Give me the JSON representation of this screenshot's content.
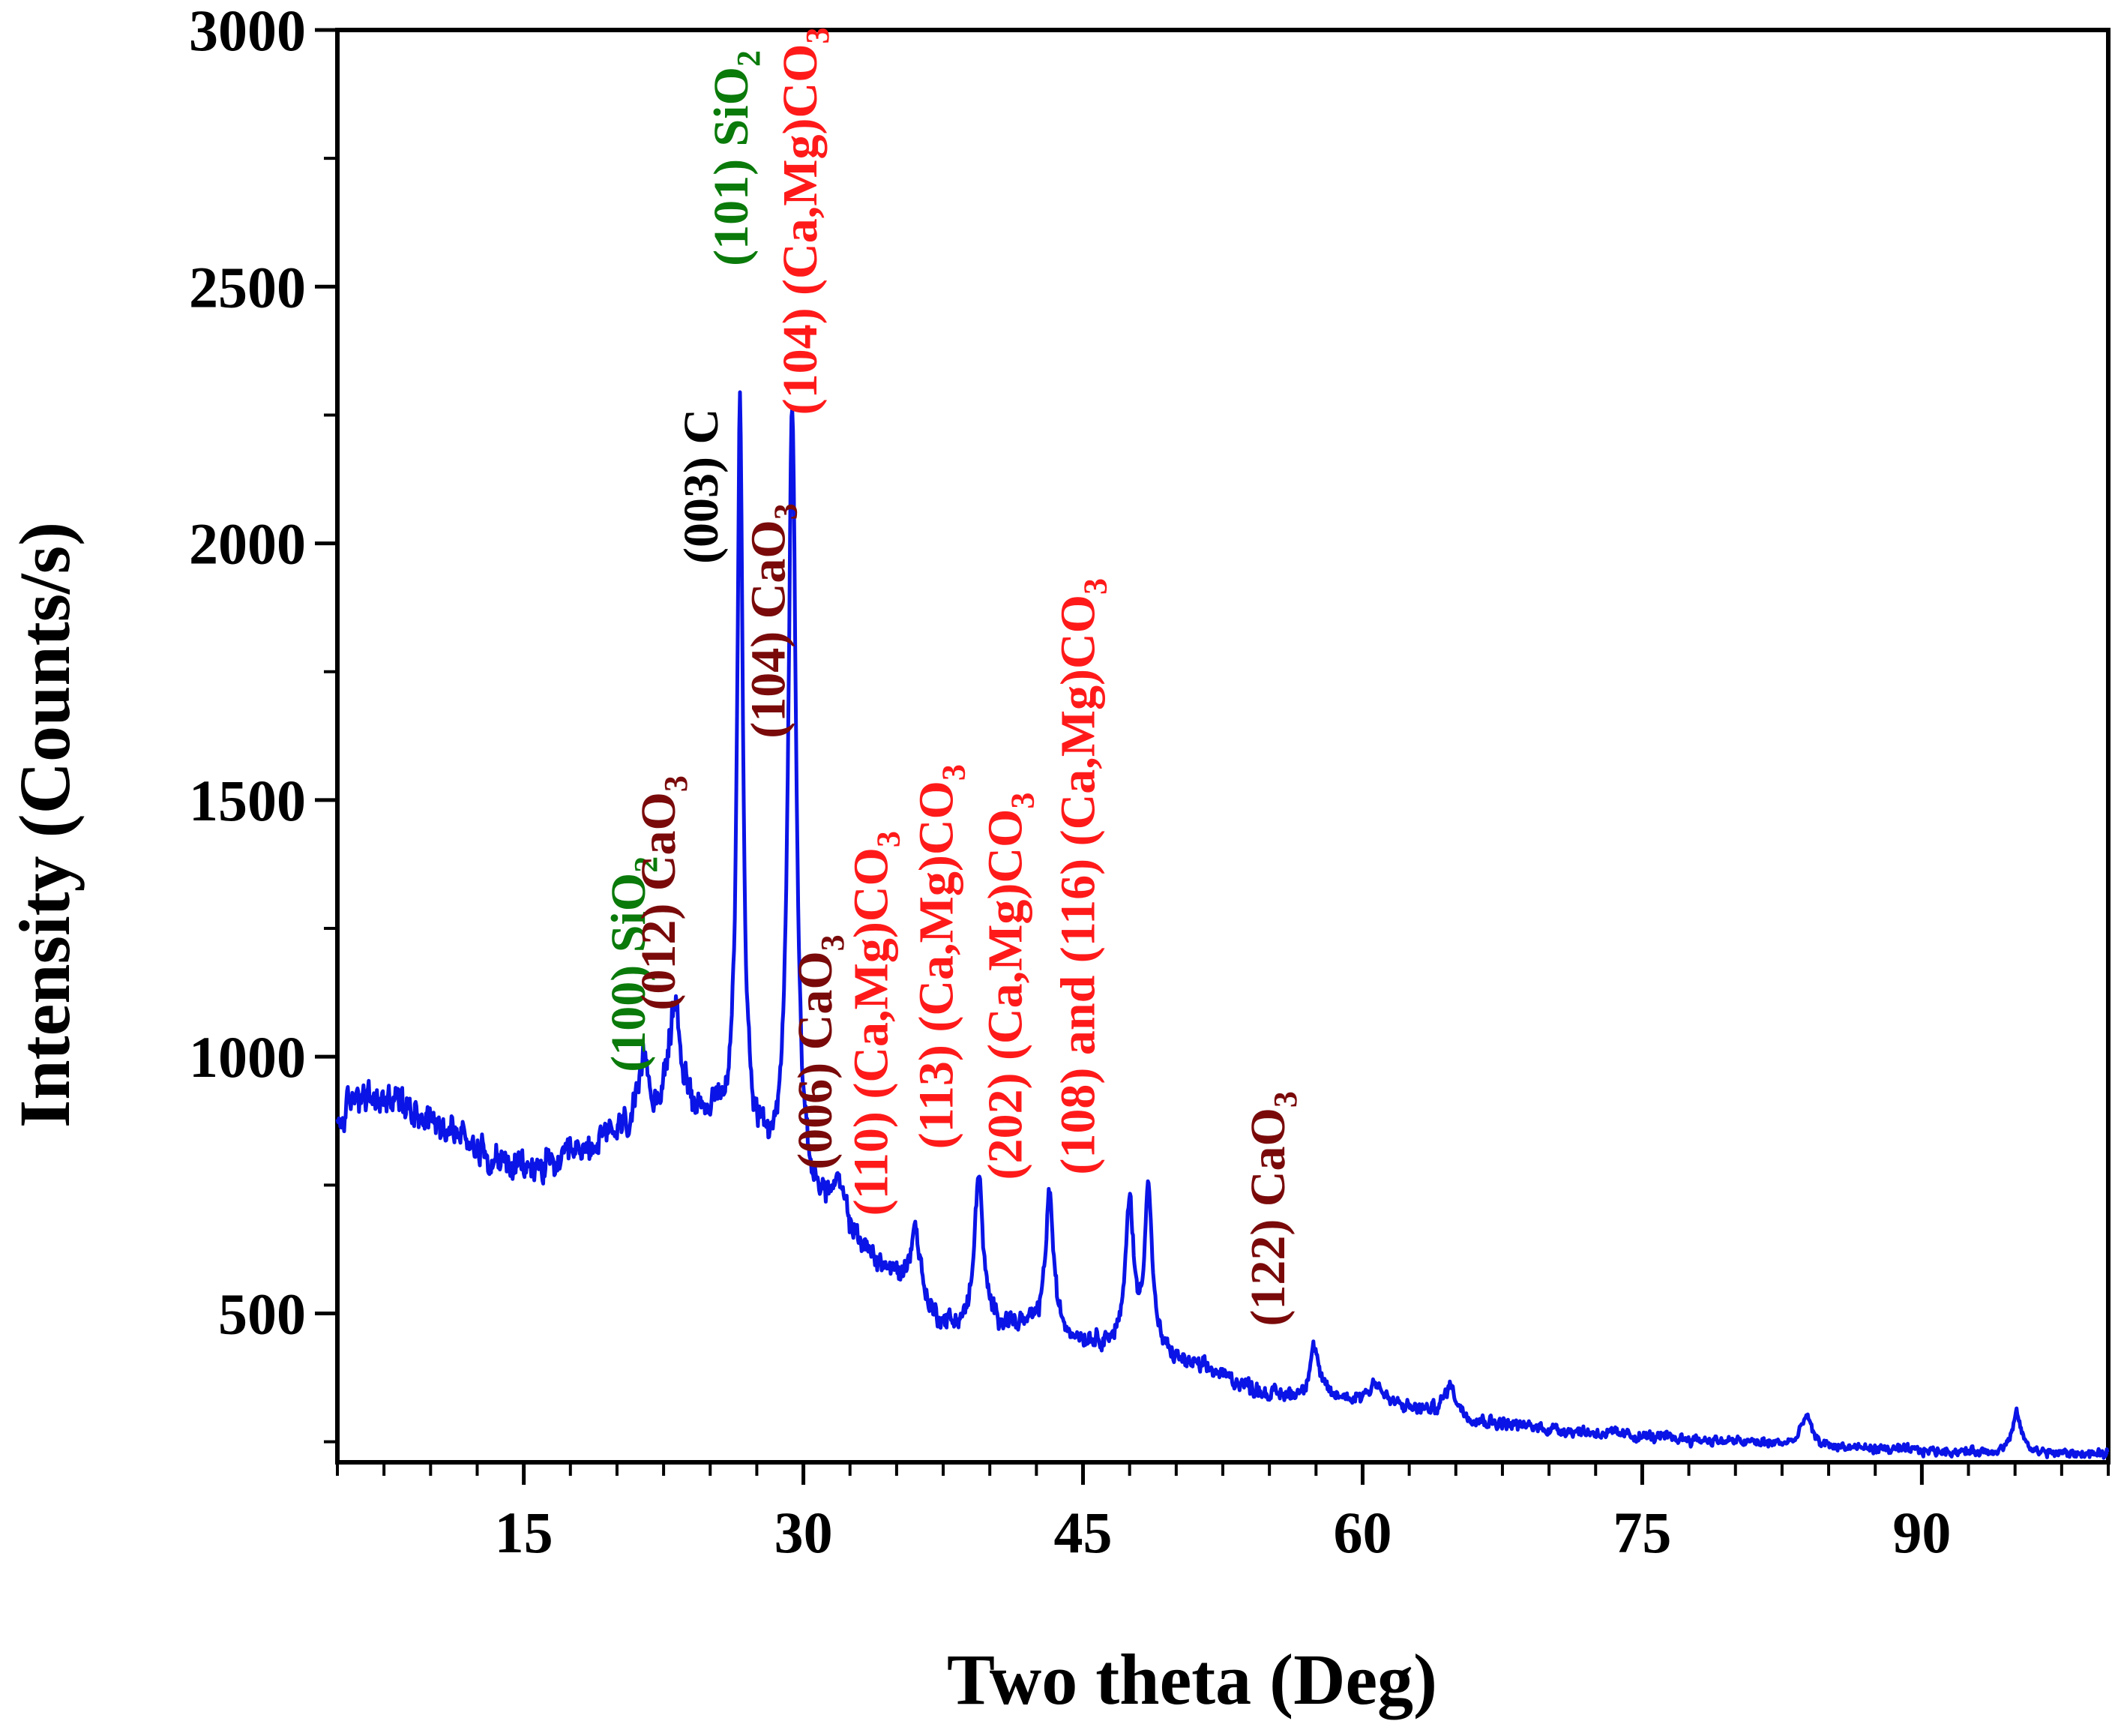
{
  "chart_data": {
    "type": "line",
    "title": "",
    "xlabel": "Two theta (Deg)",
    "ylabel": "Intensity (Counts/s)",
    "xlim": [
      5,
      100
    ],
    "ylim": [
      210,
      3000
    ],
    "xticks": [
      15,
      30,
      45,
      60,
      75,
      90
    ],
    "xtick_labels": [
      "15",
      "30",
      "45",
      "60",
      "75",
      "90"
    ],
    "xminor_step": 2.5,
    "yticks": [
      500,
      1000,
      1500,
      2000,
      2500,
      3000
    ],
    "ytick_labels": [
      "500",
      "1000",
      "1500",
      "2000",
      "2500",
      "3000"
    ],
    "yminor_step": 250,
    "series_color": "#0a14e6",
    "baseline": [
      [
        5.0,
        860
      ],
      [
        6.0,
        930
      ],
      [
        7.0,
        910
      ],
      [
        8.0,
        920
      ],
      [
        9.0,
        900
      ],
      [
        10.0,
        880
      ],
      [
        11.0,
        860
      ],
      [
        12.0,
        840
      ],
      [
        13.0,
        810
      ],
      [
        14.0,
        790
      ],
      [
        15.0,
        780
      ],
      [
        16.0,
        785
      ],
      [
        17.0,
        790
      ],
      [
        18.0,
        810
      ],
      [
        19.0,
        830
      ],
      [
        20.0,
        850
      ],
      [
        21.0,
        870
      ],
      [
        22.0,
        880
      ],
      [
        23.0,
        900
      ],
      [
        24.0,
        890
      ],
      [
        25.0,
        880
      ],
      [
        26.0,
        860
      ],
      [
        27.0,
        840
      ],
      [
        28.0,
        790
      ],
      [
        29.0,
        740
      ],
      [
        30.0,
        700
      ],
      [
        31.0,
        690
      ],
      [
        32.0,
        650
      ],
      [
        33.0,
        620
      ],
      [
        34.0,
        590
      ],
      [
        35.0,
        560
      ],
      [
        36.0,
        520
      ],
      [
        37.0,
        480
      ],
      [
        38.0,
        470
      ],
      [
        39.0,
        470
      ],
      [
        40.0,
        480
      ],
      [
        41.0,
        475
      ],
      [
        42.0,
        470
      ],
      [
        43.0,
        465
      ],
      [
        44.0,
        455
      ],
      [
        45.0,
        445
      ],
      [
        46.0,
        440
      ],
      [
        47.0,
        430
      ],
      [
        48.0,
        420
      ],
      [
        49.0,
        415
      ],
      [
        50.0,
        405
      ],
      [
        51.0,
        395
      ],
      [
        52.0,
        385
      ],
      [
        53.0,
        370
      ],
      [
        55.0,
        340
      ],
      [
        57.0,
        335
      ],
      [
        60.0,
        330
      ],
      [
        63.0,
        310
      ],
      [
        66.0,
        290
      ],
      [
        70.0,
        275
      ],
      [
        75.0,
        260
      ],
      [
        80.0,
        250
      ],
      [
        85.0,
        240
      ],
      [
        90.0,
        232
      ],
      [
        95.0,
        228
      ],
      [
        100.0,
        225
      ]
    ],
    "noise_amplitude": [
      [
        5,
        45
      ],
      [
        20,
        45
      ],
      [
        30,
        35
      ],
      [
        45,
        25
      ],
      [
        60,
        20
      ],
      [
        80,
        14
      ],
      [
        100,
        12
      ]
    ],
    "peaks": [
      {
        "position": 21.5,
        "intensity": 120,
        "width": 0.25
      },
      {
        "position": 23.1,
        "intensity": 200,
        "width": 0.35
      },
      {
        "position": 26.6,
        "intensity": 1430,
        "width": 0.18
      },
      {
        "position": 29.4,
        "intensity": 1550,
        "width": 0.25
      },
      {
        "position": 31.9,
        "intensity": 80,
        "width": 0.5
      },
      {
        "position": 36.0,
        "intensity": 140,
        "width": 0.35
      },
      {
        "position": 39.4,
        "intensity": 300,
        "width": 0.25
      },
      {
        "position": 43.2,
        "intensity": 270,
        "width": 0.25
      },
      {
        "position": 47.5,
        "intensity": 290,
        "width": 0.25
      },
      {
        "position": 48.5,
        "intensity": 320,
        "width": 0.25
      },
      {
        "position": 57.4,
        "intensity": 100,
        "width": 0.3
      },
      {
        "position": 60.7,
        "intensity": 40,
        "width": 0.4
      },
      {
        "position": 64.7,
        "intensity": 60,
        "width": 0.4
      },
      {
        "position": 83.8,
        "intensity": 60,
        "width": 0.3
      },
      {
        "position": 95.1,
        "intensity": 75,
        "width": 0.3
      }
    ],
    "annotations": [
      {
        "id": "ann-100-sio2",
        "hkl": "(100)",
        "formula": "SiO",
        "sub": "2",
        "tail": "",
        "x": 21.5,
        "y": 970,
        "color": "#0a7a0a"
      },
      {
        "id": "ann-012-caco3",
        "hkl": "(012)",
        "formula": "CaO",
        "sub": "3",
        "tail": "",
        "x": 23.1,
        "y": 1090,
        "color": "#7a0a0a"
      },
      {
        "id": "ann-003-c",
        "hkl": "(003)",
        "formula": "C",
        "sub": "",
        "tail": "",
        "x": 25.4,
        "y": 1960,
        "color": "#000000"
      },
      {
        "id": "ann-101-sio2",
        "hkl": "(101)",
        "formula": "SiO",
        "sub": "2",
        "tail": "",
        "x": 27.0,
        "y": 2540,
        "color": "#0a7a0a"
      },
      {
        "id": "ann-104-caco3",
        "hkl": "(104)",
        "formula": "CaO",
        "sub": "3",
        "tail": "",
        "x": 29.0,
        "y": 1620,
        "color": "#7a0a0a"
      },
      {
        "id": "ann-104-camgco3",
        "hkl": "(104)",
        "formula": "(Ca,Mg)CO",
        "sub": "3",
        "tail": "",
        "x": 30.7,
        "y": 2250,
        "color": "#ff1a1a"
      },
      {
        "id": "ann-006-caco3",
        "hkl": "(006)",
        "formula": "CaO",
        "sub": "3",
        "tail": "",
        "x": 31.5,
        "y": 780,
        "color": "#7a0a0a"
      },
      {
        "id": "ann-110-camgco3",
        "hkl": "(110)",
        "formula": "(Ca,Mg)CO",
        "sub": "3",
        "tail": "",
        "x": 34.5,
        "y": 690,
        "color": "#ff1a1a"
      },
      {
        "id": "ann-113-camgco3",
        "hkl": "(113)",
        "formula": "(Ca,Mg)CO",
        "sub": "3",
        "tail": "",
        "x": 38.0,
        "y": 820,
        "color": "#ff1a1a"
      },
      {
        "id": "ann-202-camgco3",
        "hkl": "(202)",
        "formula": "(Ca,Mg)CO",
        "sub": "3",
        "tail": "",
        "x": 41.7,
        "y": 760,
        "color": "#ff1a1a"
      },
      {
        "id": "ann-108-116-camgco3",
        "hkl": "(108) and (116)",
        "formula": "(Ca,Mg)CO",
        "sub": "3",
        "tail": "",
        "x": 45.6,
        "y": 770,
        "color": "#ff1a1a"
      },
      {
        "id": "ann-122-caco3",
        "hkl": "(122)",
        "formula": "CaO",
        "sub": "3",
        "tail": "",
        "x": 55.8,
        "y": 475,
        "color": "#7a0a0a"
      }
    ]
  }
}
